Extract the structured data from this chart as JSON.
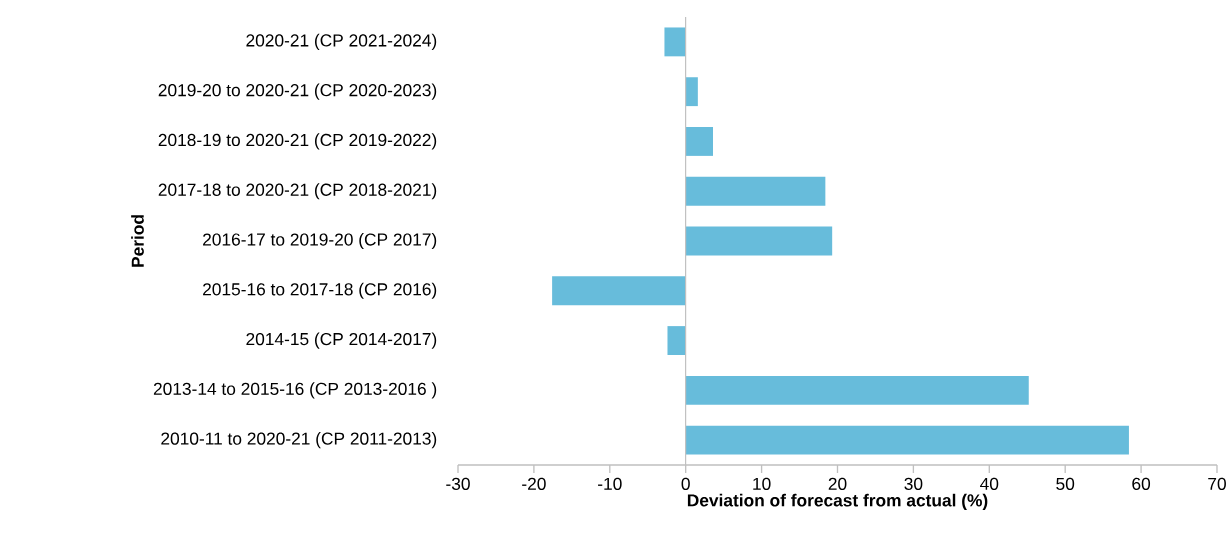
{
  "chart_data": {
    "type": "bar",
    "orientation": "horizontal",
    "xlabel": "Deviation of forecast from actual (%)",
    "ylabel": "Period",
    "categories": [
      "2020-21 (CP 2021-2024)",
      "2019-20 to 2020-21 (CP 2020-2023)",
      "2018-19 to 2020-21 (CP 2019-2022)",
      "2017-18 to 2020-21 (CP 2018-2021)",
      "2016-17 to 2019-20 (CP 2017)",
      "2015-16 to 2017-18 (CP 2016)",
      "2014-15 (CP 2014-2017)",
      "2013-14 to 2015-16 (CP 2013-2016 )",
      "2010-11 to 2020-21 (CP 2011-2013)"
    ],
    "values": [
      -2.8,
      1.6,
      3.6,
      18.4,
      19.3,
      -17.6,
      -2.4,
      45.2,
      58.4
    ],
    "color": "#67bcdb",
    "xlim": [
      -30,
      70
    ],
    "xticks": [
      -30,
      -20,
      -10,
      0,
      10,
      20,
      30,
      40,
      50,
      60,
      70
    ]
  }
}
